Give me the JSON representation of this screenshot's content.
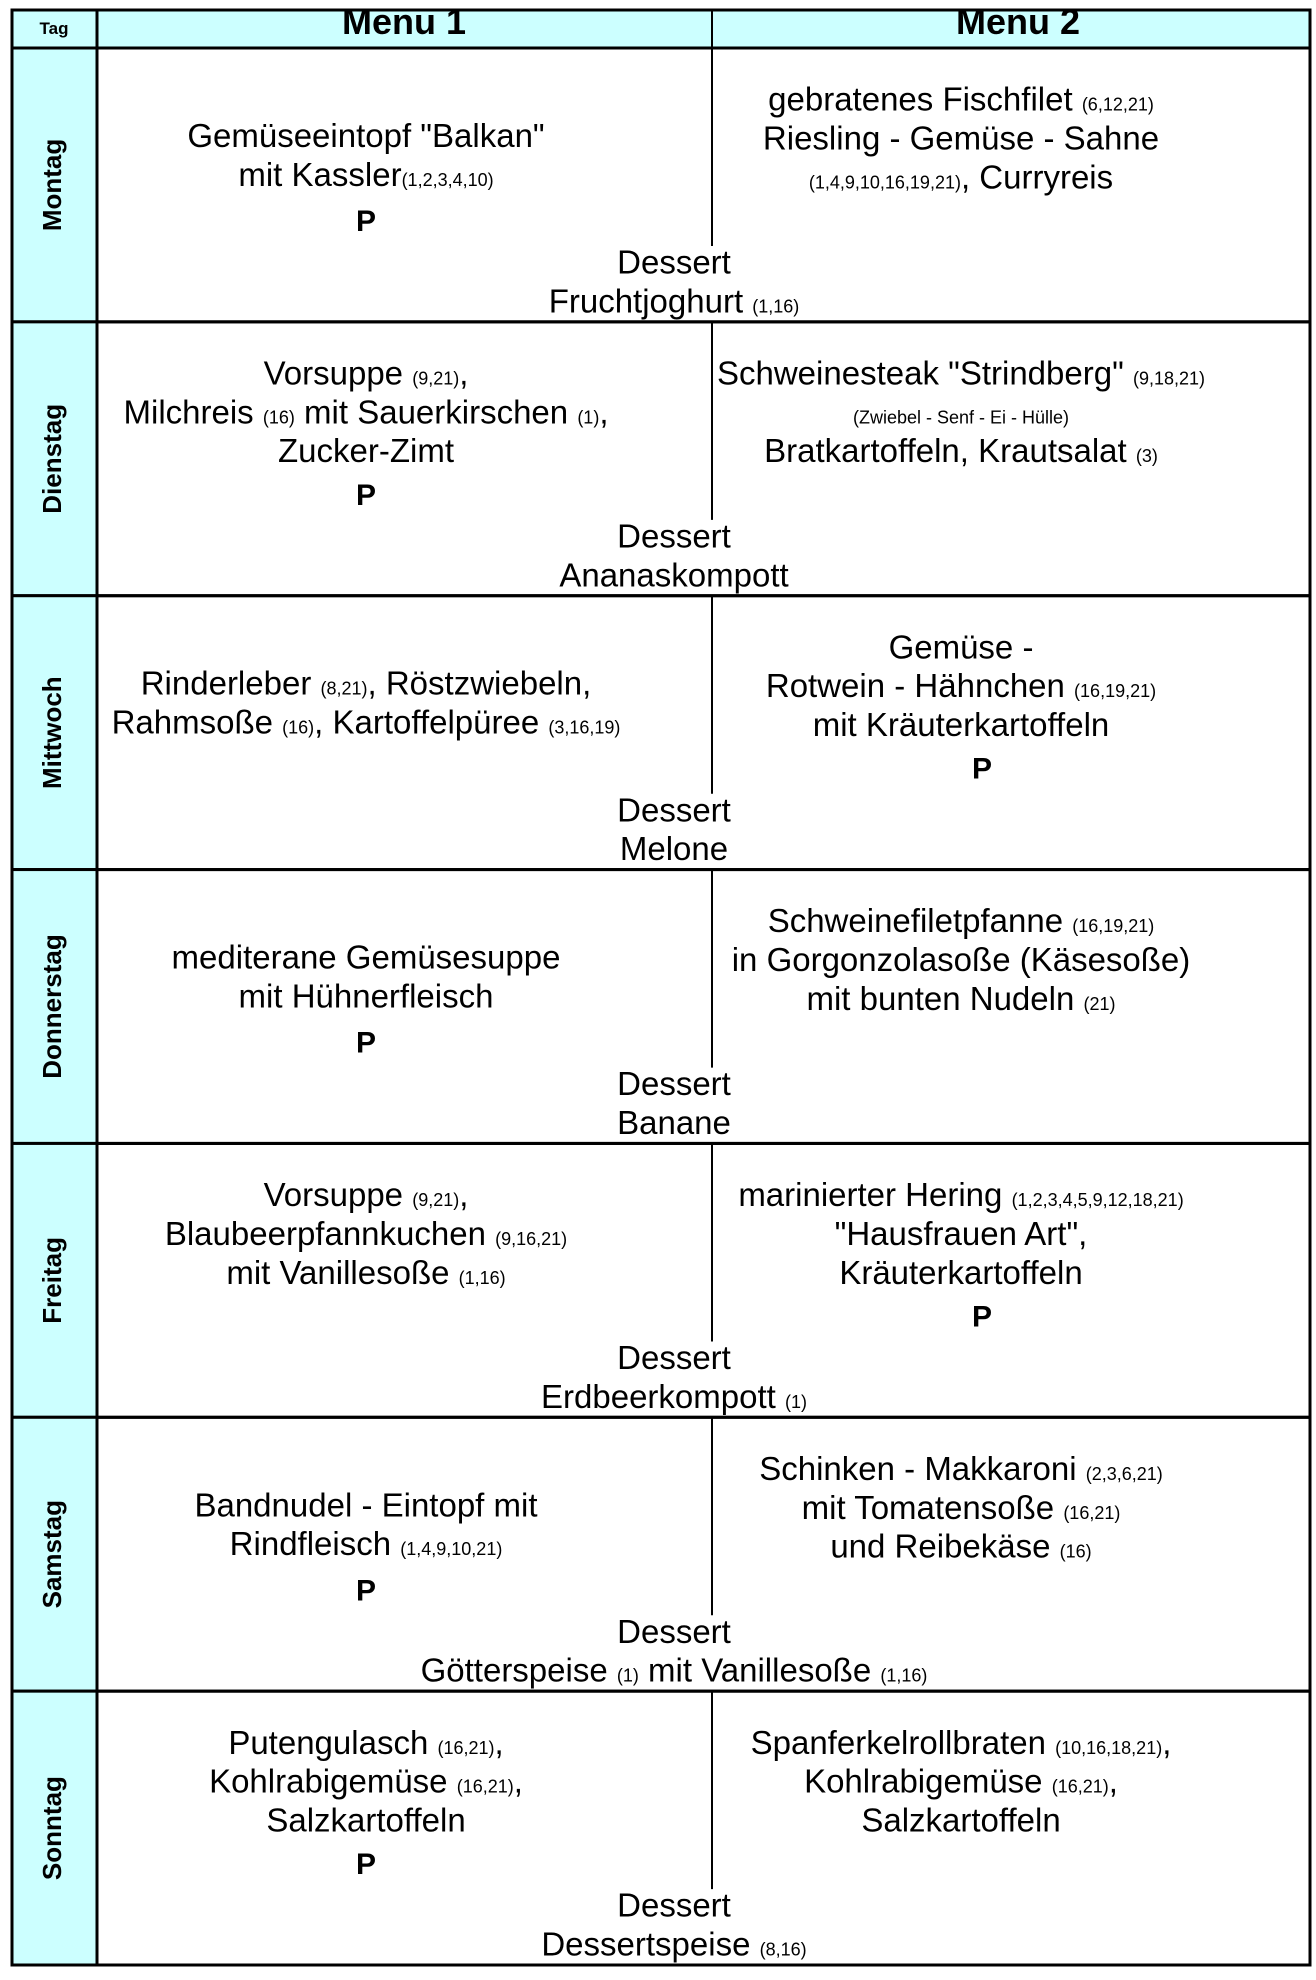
{
  "header": {
    "tag": "Tag",
    "menu1": "Menu 1",
    "menu2": "Menu 2"
  },
  "days": [
    {
      "name": "Montag",
      "menu1": {
        "lines": [
          [
            {
              "text": "Gemüseeintopf \"Balkan\""
            }
          ],
          [
            {
              "text": "mit Kassler"
            },
            {
              "note": "(1,2,3,4,10)"
            }
          ]
        ],
        "mark": "P"
      },
      "menu2": {
        "lines": [
          [
            {
              "text": "gebratenes Fischfilet "
            },
            {
              "note": "(6,12,21)"
            }
          ],
          [
            {
              "text": "Riesling - Gemüse - Sahne"
            }
          ],
          [
            {
              "note": "(1,4,9,10,16,19,21)"
            },
            {
              "text": ", Curryreis"
            }
          ]
        ]
      },
      "dessert": [
        [
          {
            "text": "Dessert"
          }
        ],
        [
          {
            "text": "Fruchtjoghurt "
          },
          {
            "note": "(1,16)"
          }
        ]
      ]
    },
    {
      "name": "Dienstag",
      "menu1": {
        "lines": [
          [
            {
              "text": "Vorsuppe "
            },
            {
              "note": "(9,21)"
            },
            {
              "text": ","
            }
          ],
          [
            {
              "text": "Milchreis "
            },
            {
              "note": "(16)"
            },
            {
              "text": " mit Sauerkirschen "
            },
            {
              "note": "(1)"
            },
            {
              "text": ","
            }
          ],
          [
            {
              "text": "Zucker-Zimt"
            }
          ]
        ],
        "mark": "P"
      },
      "menu2": {
        "lines": [
          [
            {
              "text": "Schweinesteak \"Strindberg\" "
            },
            {
              "note": "(9,18,21)"
            }
          ],
          [
            {
              "note": "(Zwiebel - Senf - Ei - Hülle)"
            }
          ],
          [
            {
              "text": "Bratkartoffeln, Krautsalat "
            },
            {
              "note": "(3)"
            }
          ]
        ]
      },
      "dessert": [
        [
          {
            "text": "Dessert"
          }
        ],
        [
          {
            "text": "Ananaskompott"
          }
        ]
      ]
    },
    {
      "name": "Mittwoch",
      "menu1": {
        "lines": [
          [
            {
              "text": "Rinderleber "
            },
            {
              "note": "(8,21)"
            },
            {
              "text": ", Röstzwiebeln,"
            }
          ],
          [
            {
              "text": "Rahmsoße "
            },
            {
              "note": "(16)"
            },
            {
              "text": ", Kartoffelpüree "
            },
            {
              "note": "(3,16,19)"
            }
          ]
        ]
      },
      "menu2": {
        "lines": [
          [
            {
              "text": "Gemüse -"
            }
          ],
          [
            {
              "text": "Rotwein - Hähnchen "
            },
            {
              "note": "(16,19,21)"
            }
          ],
          [
            {
              "text": "mit Kräuterkartoffeln"
            }
          ]
        ],
        "mark": "P"
      },
      "dessert": [
        [
          {
            "text": "Dessert"
          }
        ],
        [
          {
            "text": "Melone"
          }
        ]
      ]
    },
    {
      "name": "Donnerstag",
      "menu1": {
        "lines": [
          [
            {
              "text": "mediterane Gemüsesuppe"
            }
          ],
          [
            {
              "text": "mit Hühnerfleisch"
            }
          ]
        ],
        "mark": "P"
      },
      "menu2": {
        "lines": [
          [
            {
              "text": "Schweinefiletpfanne "
            },
            {
              "note": "(16,19,21)"
            }
          ],
          [
            {
              "text": "in Gorgonzolasoße (Käsesoße)"
            }
          ],
          [
            {
              "text": "mit bunten Nudeln "
            },
            {
              "note": "(21)"
            }
          ]
        ]
      },
      "dessert": [
        [
          {
            "text": "Dessert"
          }
        ],
        [
          {
            "text": "Banane"
          }
        ]
      ]
    },
    {
      "name": "Freitag",
      "menu1": {
        "lines": [
          [
            {
              "text": "Vorsuppe "
            },
            {
              "note": "(9,21)"
            },
            {
              "text": ","
            }
          ],
          [
            {
              "text": "Blaubeerpfannkuchen "
            },
            {
              "note": "(9,16,21)"
            }
          ],
          [
            {
              "text": "mit Vanillesoße "
            },
            {
              "note": "(1,16)"
            }
          ]
        ]
      },
      "menu2": {
        "lines": [
          [
            {
              "text": "marinierter Hering "
            },
            {
              "note": "(1,2,3,4,5,9,12,18,21)"
            }
          ],
          [
            {
              "text": "\"Hausfrauen Art\","
            }
          ],
          [
            {
              "text": "Kräuterkartoffeln"
            }
          ]
        ],
        "mark": "P"
      },
      "dessert": [
        [
          {
            "text": "Dessert"
          }
        ],
        [
          {
            "text": "Erdbeerkompott "
          },
          {
            "note": "(1)"
          }
        ]
      ]
    },
    {
      "name": "Samstag",
      "menu1": {
        "lines": [
          [
            {
              "text": "Bandnudel - Eintopf mit"
            }
          ],
          [
            {
              "text": "Rindfleisch "
            },
            {
              "note": "(1,4,9,10,21)"
            }
          ]
        ],
        "mark": "P"
      },
      "menu2": {
        "lines": [
          [
            {
              "text": "Schinken - Makkaroni "
            },
            {
              "note": "(2,3,6,21)"
            }
          ],
          [
            {
              "text": "mit Tomatensoße "
            },
            {
              "note": "(16,21)"
            }
          ],
          [
            {
              "text": "und Reibekäse "
            },
            {
              "note": "(16)"
            }
          ]
        ]
      },
      "dessert": [
        [
          {
            "text": "Dessert"
          }
        ],
        [
          {
            "text": "Götterspeise "
          },
          {
            "note": "(1)"
          },
          {
            "text": " mit Vanillesoße "
          },
          {
            "note": "(1,16)"
          }
        ]
      ]
    },
    {
      "name": "Sonntag",
      "menu1": {
        "lines": [
          [
            {
              "text": "Putengulasch "
            },
            {
              "note": "(16,21)"
            },
            {
              "text": ","
            }
          ],
          [
            {
              "text": "Kohlrabigemüse "
            },
            {
              "note": "(16,21)"
            },
            {
              "text": ","
            }
          ],
          [
            {
              "text": "Salzkartoffeln"
            }
          ]
        ],
        "mark": "P"
      },
      "menu2": {
        "lines": [
          [
            {
              "text": "Spanferkelrollbraten "
            },
            {
              "note": "(10,16,18,21)"
            },
            {
              "text": ","
            }
          ],
          [
            {
              "text": "Kohlrabigemüse "
            },
            {
              "note": "(16,21)"
            },
            {
              "text": ","
            }
          ],
          [
            {
              "text": "Salzkartoffeln"
            }
          ]
        ]
      },
      "dessert": [
        [
          {
            "text": "Dessert"
          }
        ],
        [
          {
            "text": "Dessertspeise "
          },
          {
            "note": "(8,16)"
          }
        ]
      ]
    }
  ]
}
